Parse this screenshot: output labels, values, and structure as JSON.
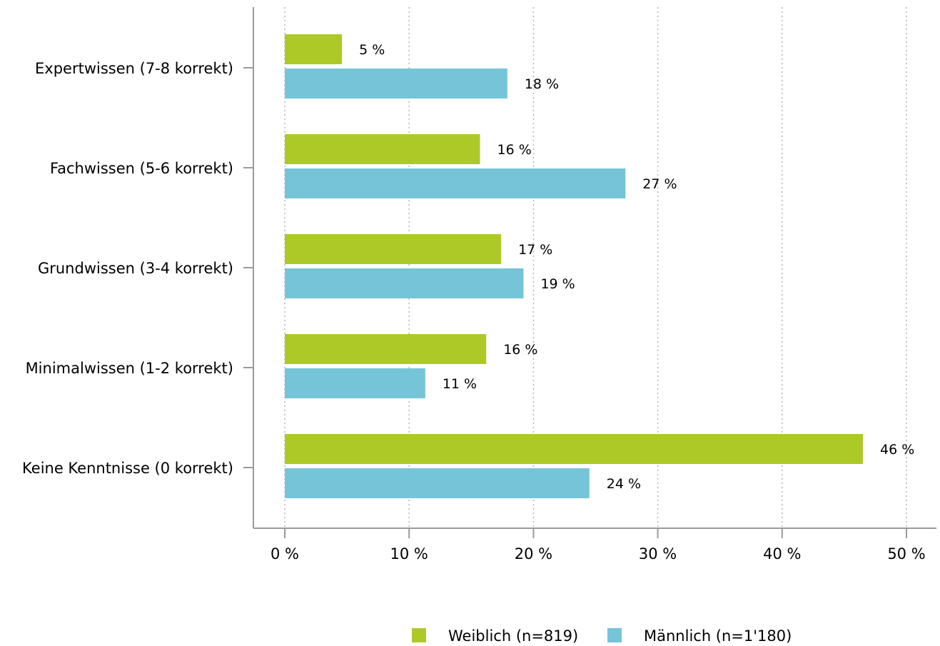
{
  "chart_data": {
    "type": "bar",
    "orientation": "horizontal",
    "categories": [
      "Expertwissen (7-8 korrekt)",
      "Fachwissen (5-6 korrekt)",
      "Grundwissen (3-4 korrekt)",
      "Minimalwissen (1-2 korrekt)",
      "Keine Kenntnisse (0 korrekt)"
    ],
    "series": [
      {
        "name": "Weiblich (n=819)",
        "color": "#adc928",
        "values": [
          4.6,
          15.7,
          17.4,
          16.2,
          46.5
        ],
        "labels": [
          "5 %",
          "16 %",
          "17 %",
          "16 %",
          "46 %"
        ]
      },
      {
        "name": "Männlich (n=1'180)",
        "color": "#76c4d8",
        "values": [
          17.9,
          27.4,
          19.2,
          11.3,
          24.5
        ],
        "labels": [
          "18 %",
          "27 %",
          "19 %",
          "11 %",
          "24 %"
        ]
      }
    ],
    "xlim": [
      0,
      50
    ],
    "xticks": [
      0,
      10,
      20,
      30,
      40,
      50
    ],
    "xtick_labels": [
      "0 %",
      "10 %",
      "20 %",
      "30 %",
      "40 %",
      "50 %"
    ],
    "grid": "vertical dotted",
    "legend_position": "bottom-right",
    "title": "",
    "xlabel": "",
    "ylabel": ""
  }
}
